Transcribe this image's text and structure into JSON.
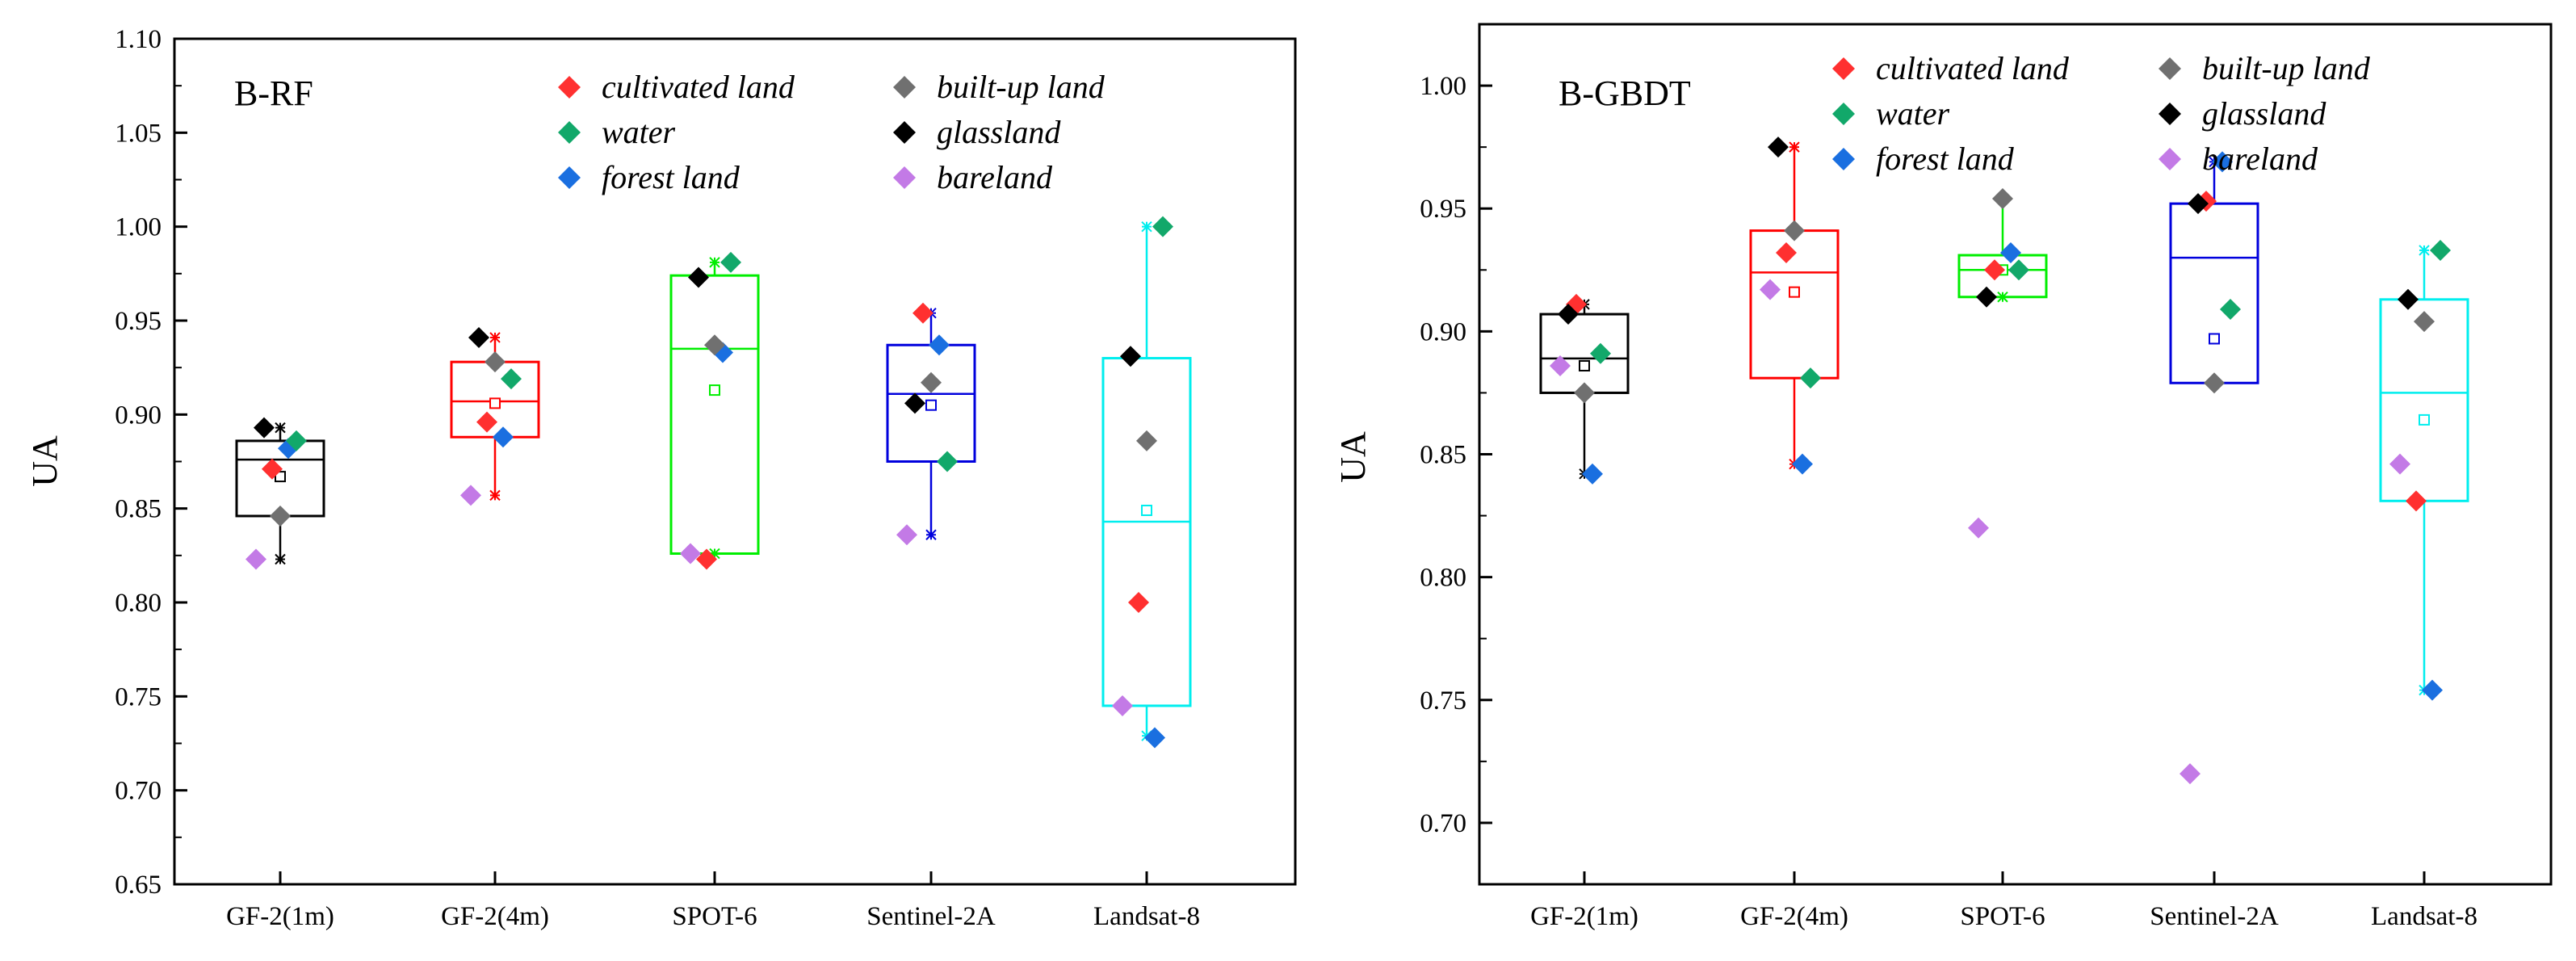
{
  "chart_data": [
    {
      "type": "box",
      "title": "B-RF",
      "ylabel": "UA",
      "xlabel": "",
      "ylim": [
        0.65,
        1.1
      ],
      "yticks": [
        "0.65",
        "0.70",
        "0.75",
        "0.80",
        "0.85",
        "0.90",
        "0.95",
        "1.00",
        "1.05",
        "1.10"
      ],
      "categories": [
        "GF-2(1m)",
        "GF-2(4m)",
        "SPOT-6",
        "Sentinel-2A",
        "Landsat-8"
      ],
      "box_colors": [
        "#000000",
        "#ff0000",
        "#00ee00",
        "#0000dd",
        "#00eeee"
      ],
      "boxes": [
        {
          "q1": 0.846,
          "median": 0.876,
          "q3": 0.886,
          "mean": 0.867,
          "whisker_low": 0.823,
          "whisker_high": 0.893
        },
        {
          "q1": 0.888,
          "median": 0.907,
          "q3": 0.928,
          "mean": 0.906,
          "whisker_low": 0.857,
          "whisker_high": 0.941
        },
        {
          "q1": 0.826,
          "median": 0.935,
          "q3": 0.974,
          "mean": 0.913,
          "whisker_low": 0.826,
          "whisker_high": 0.981
        },
        {
          "q1": 0.875,
          "median": 0.911,
          "q3": 0.937,
          "mean": 0.905,
          "whisker_low": 0.836,
          "whisker_high": 0.954
        },
        {
          "q1": 0.745,
          "median": 0.843,
          "q3": 0.93,
          "mean": 0.849,
          "whisker_low": 0.729,
          "whisker_high": 1.0
        }
      ],
      "series": [
        {
          "name": "cultivated land",
          "color": "#ff3030",
          "values": [
            0.871,
            0.896,
            0.823,
            0.954,
            0.8
          ]
        },
        {
          "name": "forest land",
          "color": "#1a6fe0",
          "values": [
            0.882,
            0.888,
            0.933,
            0.937,
            0.728
          ]
        },
        {
          "name": "glassland",
          "color": "#000000",
          "values": [
            0.893,
            0.941,
            0.973,
            0.906,
            0.931
          ]
        },
        {
          "name": "water",
          "color": "#12a86a",
          "values": [
            0.886,
            0.919,
            0.981,
            0.875,
            1.0
          ]
        },
        {
          "name": "built-up land",
          "color": "#707070",
          "values": [
            0.846,
            0.928,
            0.937,
            0.917,
            0.886
          ]
        },
        {
          "name": "bareland",
          "color": "#c37ae6",
          "values": [
            0.823,
            0.857,
            0.826,
            0.836,
            0.745
          ]
        }
      ]
    },
    {
      "type": "box",
      "title": "B-GBDT",
      "ylabel": "UA",
      "xlabel": "",
      "ylim": [
        0.675,
        1.025
      ],
      "yticks": [
        "0.70",
        "0.75",
        "0.80",
        "0.85",
        "0.90",
        "0.95",
        "1.00"
      ],
      "categories": [
        "GF-2(1m)",
        "GF-2(4m)",
        "SPOT-6",
        "Sentinel-2A",
        "Landsat-8"
      ],
      "box_colors": [
        "#000000",
        "#ff0000",
        "#00ee00",
        "#0000dd",
        "#00eeee"
      ],
      "boxes": [
        {
          "q1": 0.875,
          "median": 0.889,
          "q3": 0.907,
          "mean": 0.886,
          "whisker_low": 0.842,
          "whisker_high": 0.911
        },
        {
          "q1": 0.881,
          "median": 0.924,
          "q3": 0.941,
          "mean": 0.916,
          "whisker_low": 0.846,
          "whisker_high": 0.975
        },
        {
          "q1": 0.914,
          "median": 0.925,
          "q3": 0.931,
          "mean": 0.925,
          "whisker_low": 0.914,
          "whisker_high": 0.954
        },
        {
          "q1": 0.879,
          "median": 0.93,
          "q3": 0.952,
          "mean": 0.897,
          "whisker_low": 0.879,
          "whisker_high": 0.969
        },
        {
          "q1": 0.831,
          "median": 0.875,
          "q3": 0.913,
          "mean": 0.864,
          "whisker_low": 0.754,
          "whisker_high": 0.933
        }
      ],
      "series": [
        {
          "name": "cultivated land",
          "color": "#ff3030",
          "values": [
            0.911,
            0.932,
            0.925,
            0.953,
            0.831
          ]
        },
        {
          "name": "forest land",
          "color": "#1a6fe0",
          "values": [
            0.842,
            0.846,
            0.932,
            0.969,
            0.754
          ]
        },
        {
          "name": "glassland",
          "color": "#000000",
          "values": [
            0.907,
            0.975,
            0.914,
            0.952,
            0.913
          ]
        },
        {
          "name": "water",
          "color": "#12a86a",
          "values": [
            0.891,
            0.881,
            0.925,
            0.909,
            0.933
          ]
        },
        {
          "name": "built-up land",
          "color": "#707070",
          "values": [
            0.875,
            0.941,
            0.954,
            0.879,
            0.904
          ]
        },
        {
          "name": "bareland",
          "color": "#c37ae6",
          "values": [
            0.886,
            0.917,
            0.82,
            0.72,
            0.846
          ]
        }
      ]
    }
  ]
}
